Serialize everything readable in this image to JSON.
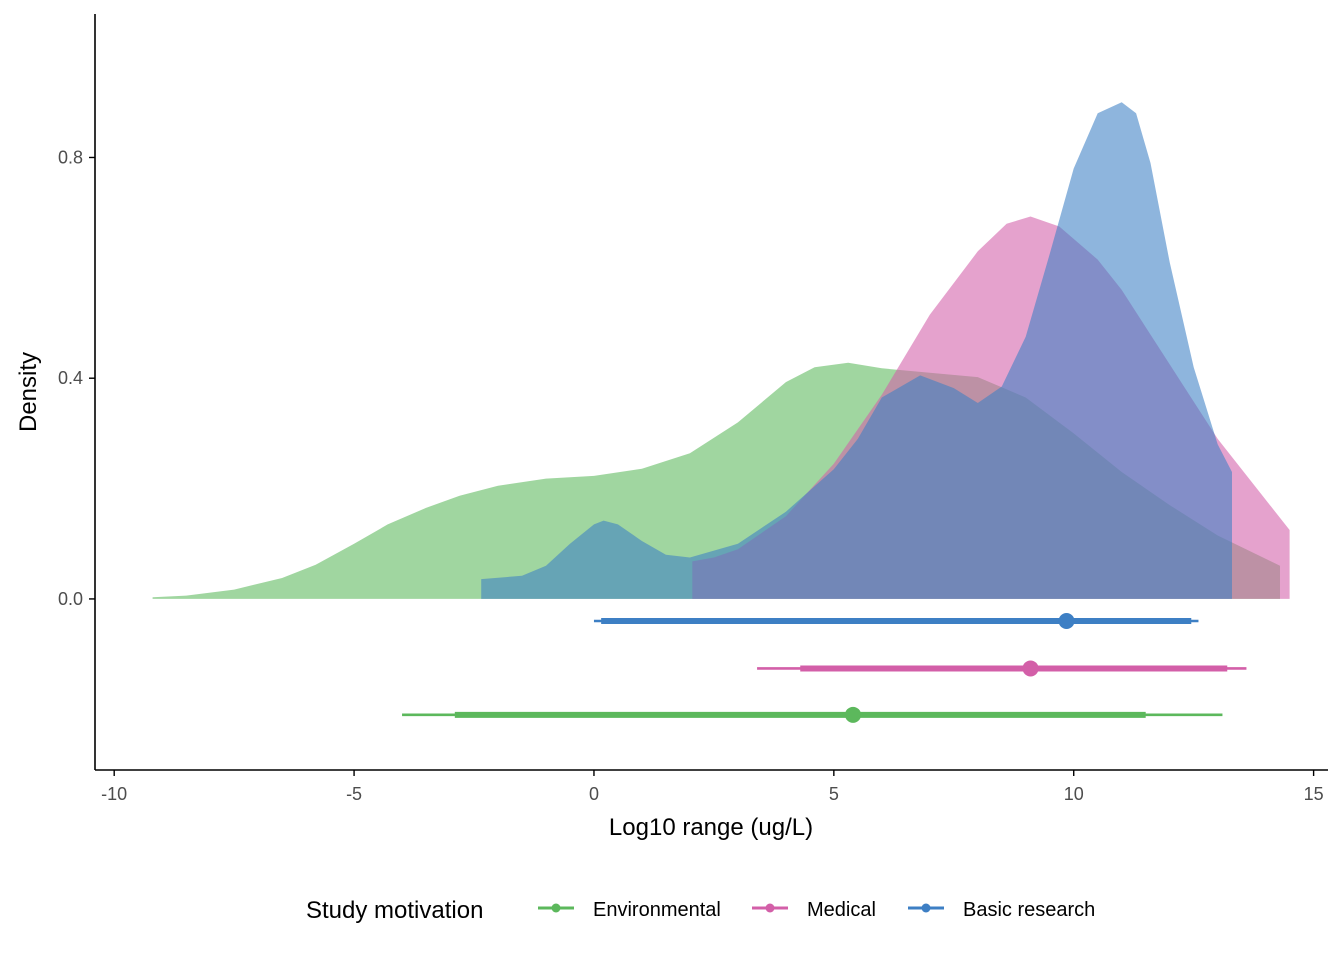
{
  "chart_data": {
    "type": "area",
    "subtype": "density with point-interval summaries (halfeye)",
    "xlabel": "Log10 range (ug/L)",
    "ylabel": "Density",
    "xlim": [
      -10.4,
      15.3
    ],
    "ylim": [
      -0.31,
      1.06
    ],
    "x_ticks": [
      -10,
      -5,
      0,
      5,
      10,
      15
    ],
    "x_tick_labels": [
      "-10",
      "-5",
      "0",
      "5",
      "10",
      "15"
    ],
    "y_ticks": [
      0.0,
      0.4,
      0.8
    ],
    "y_tick_labels": [
      "0.0",
      "0.4",
      "0.8"
    ],
    "grid": false,
    "legend": {
      "title": "Study motivation",
      "position": "bottom"
    },
    "series": [
      {
        "name": "Environmental",
        "color": "#5cb85c",
        "fill_opacity": 0.58,
        "density": {
          "x": [
            -9.2,
            -8.5,
            -7.5,
            -6.5,
            -5.8,
            -5.0,
            -4.3,
            -3.5,
            -2.8,
            -2.0,
            -1.0,
            0.0,
            1.0,
            2.0,
            3.0,
            4.0,
            4.6,
            5.3,
            6.0,
            7.0,
            8.0,
            9.0,
            10.0,
            11.0,
            12.0,
            13.0,
            14.3
          ],
          "y": [
            0.003,
            0.006,
            0.017,
            0.038,
            0.062,
            0.1,
            0.135,
            0.165,
            0.187,
            0.205,
            0.218,
            0.223,
            0.236,
            0.264,
            0.32,
            0.393,
            0.42,
            0.428,
            0.418,
            0.41,
            0.402,
            0.365,
            0.3,
            0.23,
            0.17,
            0.115,
            0.06
          ]
        },
        "point": 5.4,
        "interval_outer": [
          -4.0,
          13.1
        ],
        "interval_inner": [
          -2.9,
          11.5
        ]
      },
      {
        "name": "Medical",
        "color": "#d35fa8",
        "fill_opacity": 0.58,
        "density": {
          "x": [
            2.05,
            2.5,
            3.0,
            4.0,
            5.0,
            6.0,
            7.0,
            8.0,
            8.6,
            9.1,
            9.7,
            10.5,
            11.0,
            12.0,
            13.0,
            14.0,
            14.5
          ],
          "y": [
            0.068,
            0.075,
            0.09,
            0.15,
            0.245,
            0.37,
            0.515,
            0.63,
            0.68,
            0.693,
            0.675,
            0.615,
            0.56,
            0.425,
            0.29,
            0.18,
            0.125
          ]
        },
        "point": 9.1,
        "interval_outer": [
          3.4,
          13.6
        ],
        "interval_inner": [
          4.3,
          13.2
        ]
      },
      {
        "name": "Basic research",
        "color": "#3d7fc4",
        "fill_opacity": 0.58,
        "density": {
          "x": [
            -2.35,
            -1.5,
            -1.0,
            -0.5,
            0.0,
            0.2,
            0.5,
            1.0,
            1.5,
            2.0,
            3.0,
            4.0,
            5.0,
            5.5,
            6.0,
            6.8,
            7.5,
            8.0,
            8.5,
            9.0,
            9.5,
            10.0,
            10.5,
            11.0,
            11.3,
            11.6,
            12.0,
            12.5,
            13.0,
            13.3
          ],
          "y": [
            0.036,
            0.042,
            0.06,
            0.1,
            0.135,
            0.142,
            0.135,
            0.105,
            0.08,
            0.075,
            0.1,
            0.158,
            0.235,
            0.29,
            0.365,
            0.405,
            0.382,
            0.355,
            0.385,
            0.475,
            0.625,
            0.78,
            0.88,
            0.9,
            0.88,
            0.79,
            0.61,
            0.42,
            0.28,
            0.23
          ]
        },
        "point": 9.85,
        "interval_outer": [
          0.0,
          12.6
        ],
        "interval_inner": [
          0.15,
          12.45
        ]
      }
    ]
  }
}
